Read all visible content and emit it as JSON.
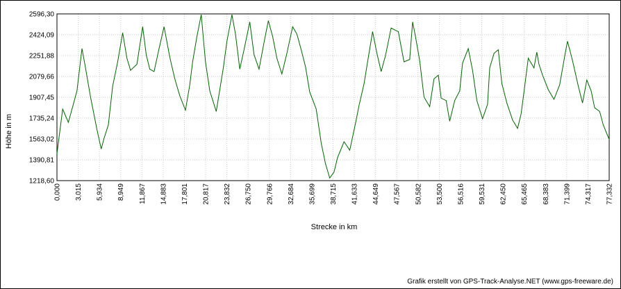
{
  "chart_data": {
    "type": "line",
    "xlabel": "Strecke  in  km",
    "ylabel": "Höhe  in  m",
    "xlim": [
      0.0,
      77.332
    ],
    "ylim": [
      1218.6,
      2596.3
    ],
    "grid": true,
    "x_tick_labels": [
      "0,000",
      "3,015",
      "5,934",
      "8,949",
      "11,867",
      "14,883",
      "17,801",
      "20,817",
      "23,832",
      "26,750",
      "29,766",
      "32,684",
      "35,699",
      "38,715",
      "41,633",
      "44,649",
      "47,567",
      "50,582",
      "53,500",
      "56,516",
      "59,531",
      "62,450",
      "65,465",
      "68,383",
      "71,399",
      "74,317",
      "77,332"
    ],
    "y_tick_labels": [
      "1218,60",
      "1390,81",
      "1563,02",
      "1735,24",
      "1907,45",
      "2079,66",
      "2251,88",
      "2424,09",
      "2596,30"
    ],
    "line_color": "#006400",
    "series": [
      {
        "x": [
          0.0,
          0.8,
          1.6,
          2.3,
          2.8,
          3.5,
          4.0,
          4.7,
          5.6,
          6.2,
          6.6,
          7.2,
          7.8,
          8.5,
          9.2,
          9.8,
          10.3,
          11.2,
          12.0,
          12.5,
          13.0,
          13.6,
          14.3,
          15.0,
          15.8,
          16.5,
          17.2,
          18.0,
          18.6,
          19.0,
          19.6,
          20.2,
          20.8,
          21.4,
          22.3,
          23.3,
          23.8,
          24.5,
          25.0,
          25.6,
          26.2,
          27.0,
          27.6,
          28.3,
          29.0,
          29.6,
          30.2,
          30.8,
          31.5,
          32.2,
          33.0,
          33.6,
          34.2,
          34.8,
          35.4,
          36.3,
          37.0,
          37.6,
          38.2,
          38.8,
          39.3,
          40.2,
          41.0,
          41.8,
          42.3,
          43.0,
          43.5,
          44.2,
          44.8,
          45.4,
          46.0,
          46.8,
          47.4,
          47.8,
          48.6,
          49.4,
          49.8,
          50.2,
          50.8,
          51.4,
          52.2,
          52.8,
          53.4,
          53.8,
          54.5,
          55.0,
          55.7,
          56.4,
          56.8,
          57.6,
          58.2,
          58.8,
          59.6,
          60.3,
          60.6,
          61.2,
          61.8,
          62.3,
          63.0,
          63.8,
          64.5,
          65.0,
          65.4,
          66.0,
          66.8,
          67.2,
          67.5,
          68.0,
          68.8,
          69.6,
          70.4,
          71.2,
          71.5,
          72.2,
          73.0,
          73.6,
          74.2,
          74.8,
          75.3,
          76.0,
          76.5,
          76.9,
          77.332
        ],
        "y": [
          1440,
          1810,
          1700,
          1850,
          1960,
          2310,
          2150,
          1910,
          1640,
          1480,
          1570,
          1680,
          2000,
          2200,
          2440,
          2230,
          2130,
          2180,
          2490,
          2260,
          2140,
          2120,
          2310,
          2490,
          2240,
          2060,
          1920,
          1800,
          2010,
          2200,
          2410,
          2590,
          2200,
          1960,
          1790,
          2150,
          2370,
          2590,
          2430,
          2140,
          2300,
          2530,
          2260,
          2140,
          2360,
          2540,
          2410,
          2230,
          2100,
          2270,
          2490,
          2430,
          2300,
          2160,
          1950,
          1810,
          1530,
          1360,
          1240,
          1290,
          1410,
          1540,
          1470,
          1690,
          1840,
          2020,
          2200,
          2450,
          2270,
          2120,
          2250,
          2480,
          2460,
          2450,
          2200,
          2220,
          2530,
          2410,
          2210,
          1910,
          1830,
          2060,
          2090,
          1900,
          1880,
          1710,
          1880,
          1960,
          2190,
          2310,
          2130,
          1880,
          1730,
          1850,
          2150,
          2270,
          2300,
          2020,
          1860,
          1720,
          1650,
          1770,
          1950,
          2230,
          2150,
          2280,
          2180,
          2090,
          1970,
          1890,
          2010,
          2280,
          2370,
          2210,
          2000,
          1860,
          2050,
          1960,
          1820,
          1790,
          1680,
          1620,
          1560
        ]
      }
    ]
  },
  "credit": "Grafik erstellt von GPS-Track-Analyse.NET (www.gps-freeware.de)"
}
